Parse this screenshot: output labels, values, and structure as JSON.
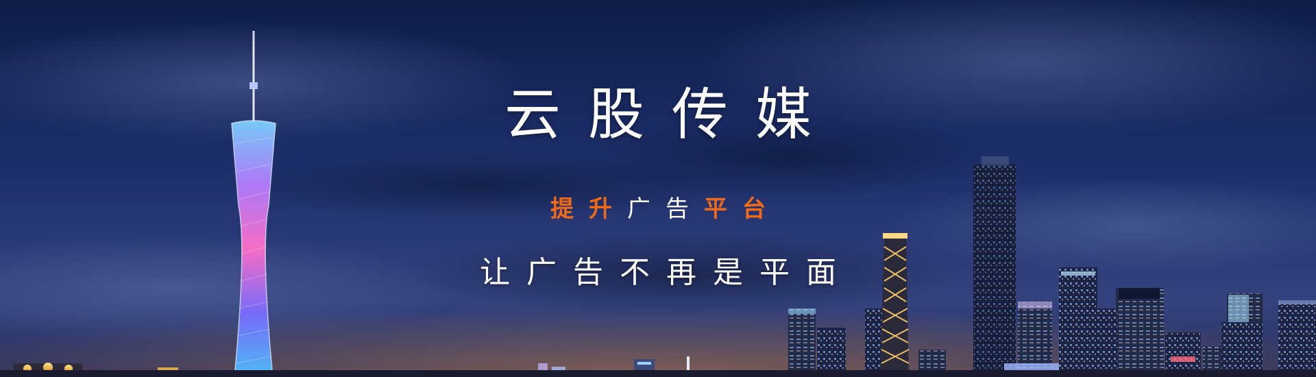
{
  "banner": {
    "title": "云股传媒",
    "subtitle": {
      "part1": "提升",
      "part2": "广告",
      "part3": "平台"
    },
    "tagline": "让广告不再是平面"
  },
  "colors": {
    "accent_orange": "#ef6a18",
    "sky_top": "#13224f",
    "sky_bottom": "#3a4a8a",
    "text_white": "#ffffff"
  }
}
